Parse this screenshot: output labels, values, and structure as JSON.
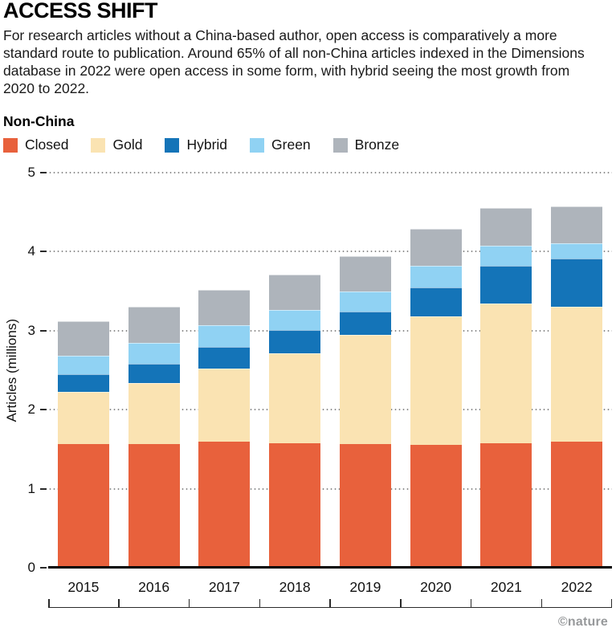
{
  "header": {
    "title": "ACCESS SHIFT",
    "description": "For research articles without a China-based author, open access is comparatively a more standard route to publication. Around 65% of all non-China articles indexed in the Dimensions database in 2022 were open access in some form, with hybrid seeing the most growth from 2020 to 2022."
  },
  "chart_label": "Non-China",
  "credit": "©nature",
  "colors": {
    "closed": "#E8613C",
    "gold": "#FAE3B2",
    "hybrid": "#1474B8",
    "green": "#90D2F3",
    "bronze": "#AEB4BB"
  },
  "chart_data": {
    "type": "bar",
    "stacked": true,
    "title": "Non-China",
    "xlabel": "",
    "ylabel": "Articles (millions)",
    "ylim": [
      0,
      5
    ],
    "yticks": [
      0,
      1,
      2,
      3,
      4,
      5
    ],
    "grid": "dotted horizontal",
    "legend_position": "top",
    "categories": [
      "2015",
      "2016",
      "2017",
      "2018",
      "2019",
      "2020",
      "2021",
      "2022"
    ],
    "series": [
      {
        "name": "Closed",
        "color": "#E8613C",
        "values": [
          1.57,
          1.57,
          1.6,
          1.58,
          1.57,
          1.56,
          1.58,
          1.6
        ]
      },
      {
        "name": "Gold",
        "color": "#FAE3B2",
        "values": [
          0.66,
          0.77,
          0.92,
          1.13,
          1.38,
          1.62,
          1.76,
          1.7
        ]
      },
      {
        "name": "Hybrid",
        "color": "#1474B8",
        "values": [
          0.22,
          0.24,
          0.28,
          0.3,
          0.29,
          0.37,
          0.48,
          0.61
        ]
      },
      {
        "name": "Green",
        "color": "#90D2F3",
        "values": [
          0.23,
          0.27,
          0.27,
          0.25,
          0.26,
          0.27,
          0.26,
          0.2
        ]
      },
      {
        "name": "Bronze",
        "color": "#AEB4BB",
        "values": [
          0.44,
          0.45,
          0.45,
          0.45,
          0.44,
          0.47,
          0.47,
          0.46
        ]
      }
    ],
    "totals": [
      3.12,
      3.3,
      3.52,
      3.71,
      3.94,
      4.29,
      4.55,
      4.57
    ]
  }
}
